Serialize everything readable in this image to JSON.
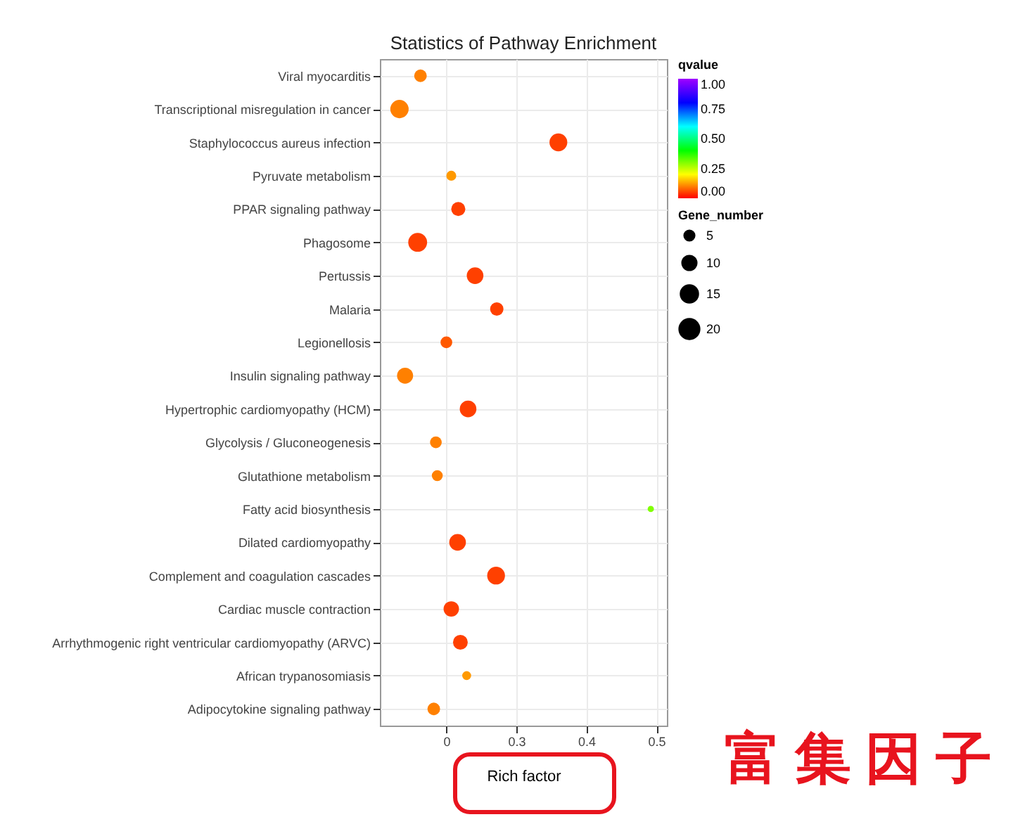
{
  "chart_data": {
    "type": "bubble",
    "orientation": "horizontal",
    "title": "Statistics of Pathway Enrichment",
    "xlabel": "Rich factor",
    "categories": [
      "Viral myocarditis",
      "Transcriptional misregulation in cancer",
      "Staphylococcus aureus infection",
      "Pyruvate metabolism",
      "PPAR signaling pathway",
      "Phagosome",
      "Pertussis",
      "Malaria",
      "Legionellosis",
      "Insulin signaling pathway",
      "Hypertrophic cardiomyopathy (HCM)",
      "Glycolysis / Gluconeogenesis",
      "Glutathione metabolism",
      "Fatty acid biosynthesis",
      "Dilated cardiomyopathy",
      "Complement and coagulation cascades",
      "Cardiac muscle contraction",
      "Arrhythmogenic right ventricular cardiomyopathy (ARVC)",
      "African trypanosomiasis",
      "Adipocytokine signaling pathway"
    ],
    "values": [
      0.163,
      0.133,
      0.36,
      0.207,
      0.217,
      0.159,
      0.241,
      0.272,
      0.2,
      0.141,
      0.231,
      0.185,
      0.187,
      0.492,
      0.216,
      0.271,
      0.207,
      0.22,
      0.229,
      0.182
    ],
    "sizes": [
      8,
      17,
      16,
      5,
      10,
      18,
      14,
      9,
      7,
      13,
      14,
      7,
      6,
      2,
      14,
      16,
      12,
      11,
      4,
      8
    ],
    "cvalues": [
      0.1,
      0.1,
      0.05,
      0.12,
      0.05,
      0.05,
      0.05,
      0.05,
      0.07,
      0.1,
      0.05,
      0.1,
      0.1,
      0.3,
      0.05,
      0.05,
      0.05,
      0.05,
      0.12,
      0.1
    ],
    "xlim": [
      0.105,
      0.515
    ],
    "xticks": [
      {
        "value": 0.2,
        "label": "0"
      },
      0.3,
      0.4,
      0.5
    ],
    "clabel": "qvalue",
    "clim": [
      0,
      1
    ],
    "cticks": [
      {
        "value": 0,
        "label": "0.00"
      },
      {
        "value": 0.25,
        "label": "0.25"
      },
      {
        "value": 0.5,
        "label": "0.50"
      },
      {
        "value": 0.75,
        "label": "0.75"
      },
      {
        "value": 1,
        "label": "1.00"
      }
    ],
    "legend_title": "Gene_number",
    "size_legend": [
      5,
      10,
      15,
      20
    ],
    "grid": true,
    "annotations": [
      "富集因子"
    ]
  }
}
